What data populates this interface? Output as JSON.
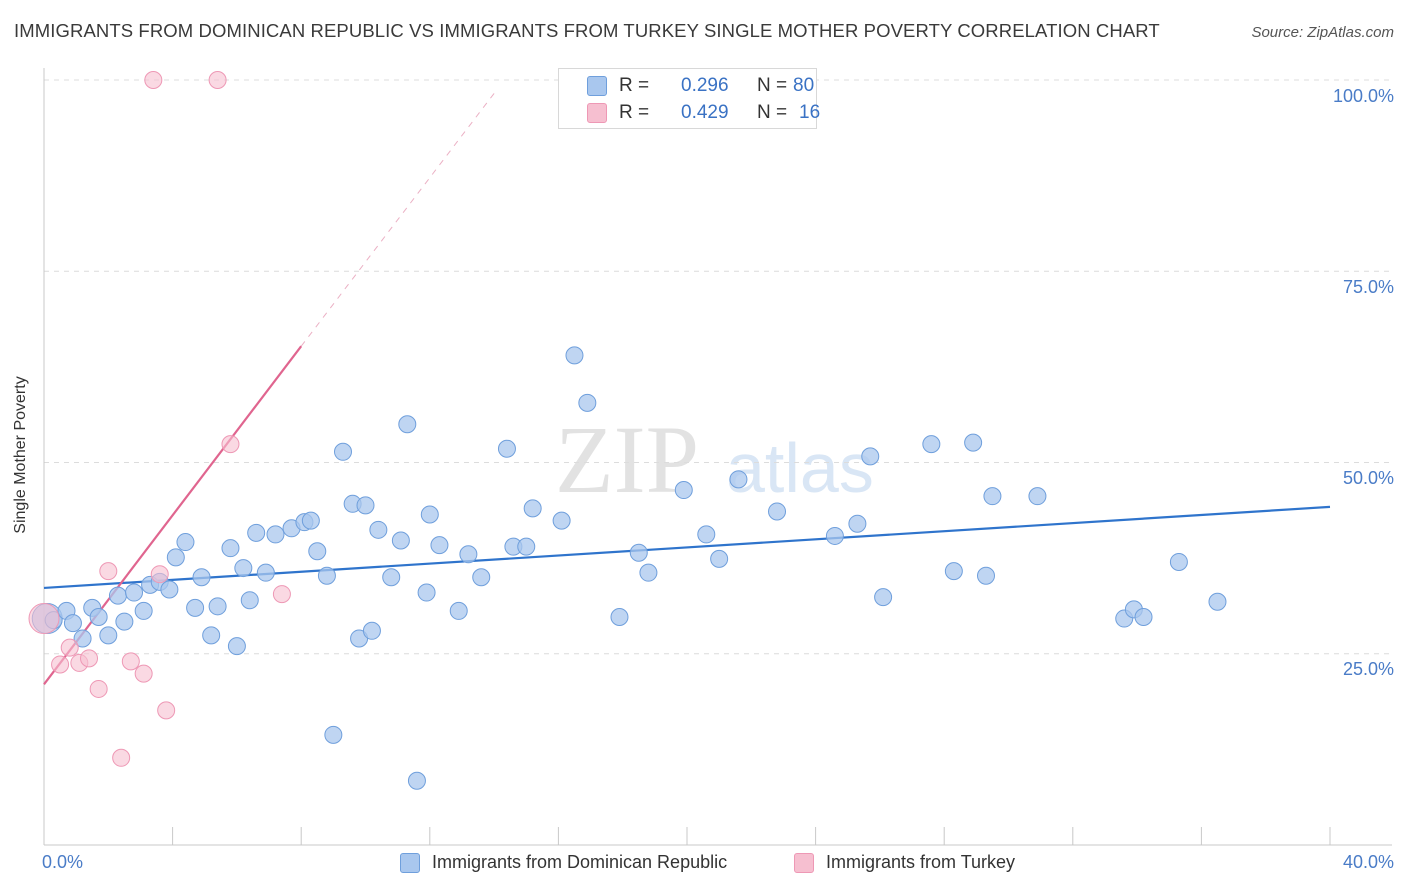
{
  "title": "IMMIGRANTS FROM DOMINICAN REPUBLIC VS IMMIGRANTS FROM TURKEY SINGLE MOTHER POVERTY CORRELATION CHART",
  "source": "Source: ZipAtlas.com",
  "watermark": {
    "zip": "ZIP",
    "atlas": "atlas"
  },
  "legend": {
    "r_label": "R =",
    "n_label": "N =",
    "rows": [
      {
        "r": "0.296",
        "n": "80"
      },
      {
        "r": "0.429",
        "n": "16"
      }
    ]
  },
  "colors": {
    "blue_fill": "#a9c7ee",
    "blue_stroke": "#6f9fdc",
    "blue_line": "#2f74cc",
    "pink_fill": "#f6bfd0",
    "pink_stroke": "#ee98b5",
    "pink_line": "#e0658f",
    "tick_text": "#4a7cc7"
  },
  "chart_data": {
    "type": "scatter",
    "title": "IMMIGRANTS FROM DOMINICAN REPUBLIC VS IMMIGRANTS FROM TURKEY SINGLE MOTHER POVERTY CORRELATION CHART",
    "xlabel": "",
    "ylabel": "Single Mother Poverty",
    "xlim": [
      0,
      40
    ],
    "ylim": [
      0,
      100
    ],
    "x_tick_labels": [
      "0.0%",
      "40.0%"
    ],
    "y_ticks": [
      25,
      50,
      75,
      100
    ],
    "y_tick_labels": [
      "25.0%",
      "50.0%",
      "75.0%",
      "100.0%"
    ],
    "legend_position": "top-center",
    "series": [
      {
        "name": "Immigrants from Dominican Republic",
        "r": 0.296,
        "n": 80,
        "trend": {
          "x": [
            0,
            40
          ],
          "y": [
            33.6,
            44.2
          ]
        },
        "points": [
          [
            0.1,
            29.6
          ],
          [
            0.3,
            29.4
          ],
          [
            0.7,
            30.6
          ],
          [
            0.9,
            29.0
          ],
          [
            1.2,
            27.0
          ],
          [
            1.5,
            31.0
          ],
          [
            1.7,
            29.8
          ],
          [
            2.0,
            27.4
          ],
          [
            2.3,
            32.6
          ],
          [
            2.5,
            29.2
          ],
          [
            2.8,
            33.0
          ],
          [
            3.1,
            30.6
          ],
          [
            3.3,
            34.0
          ],
          [
            3.6,
            34.4
          ],
          [
            3.9,
            33.4
          ],
          [
            4.1,
            37.6
          ],
          [
            4.4,
            39.6
          ],
          [
            4.7,
            31.0
          ],
          [
            4.9,
            35.0
          ],
          [
            5.2,
            27.4
          ],
          [
            5.4,
            31.2
          ],
          [
            5.8,
            38.8
          ],
          [
            6.0,
            26.0
          ],
          [
            6.2,
            36.2
          ],
          [
            6.4,
            32.0
          ],
          [
            6.6,
            40.8
          ],
          [
            6.9,
            35.6
          ],
          [
            7.2,
            40.6
          ],
          [
            7.7,
            41.4
          ],
          [
            8.1,
            42.2
          ],
          [
            8.3,
            42.4
          ],
          [
            8.5,
            38.4
          ],
          [
            8.8,
            35.2
          ],
          [
            9.0,
            14.4
          ],
          [
            9.3,
            51.4
          ],
          [
            9.6,
            44.6
          ],
          [
            9.8,
            27.0
          ],
          [
            10.0,
            44.4
          ],
          [
            10.2,
            28.0
          ],
          [
            10.4,
            41.2
          ],
          [
            10.8,
            35.0
          ],
          [
            11.1,
            39.8
          ],
          [
            11.3,
            55.0
          ],
          [
            11.6,
            8.4
          ],
          [
            11.9,
            33.0
          ],
          [
            12.0,
            43.2
          ],
          [
            12.3,
            39.2
          ],
          [
            12.9,
            30.6
          ],
          [
            13.2,
            38.0
          ],
          [
            13.6,
            35.0
          ],
          [
            14.4,
            51.8
          ],
          [
            14.6,
            39.0
          ],
          [
            15.0,
            39.0
          ],
          [
            15.2,
            44.0
          ],
          [
            16.1,
            42.4
          ],
          [
            16.5,
            64.0
          ],
          [
            16.9,
            57.8
          ],
          [
            17.9,
            29.8
          ],
          [
            18.5,
            38.2
          ],
          [
            18.8,
            35.6
          ],
          [
            19.9,
            46.4
          ],
          [
            20.6,
            40.6
          ],
          [
            21.0,
            37.4
          ],
          [
            21.6,
            47.8
          ],
          [
            22.8,
            43.6
          ],
          [
            24.6,
            40.4
          ],
          [
            25.3,
            42.0
          ],
          [
            25.7,
            50.8
          ],
          [
            26.1,
            32.4
          ],
          [
            27.6,
            52.4
          ],
          [
            28.3,
            35.8
          ],
          [
            28.9,
            52.6
          ],
          [
            29.3,
            35.2
          ],
          [
            29.5,
            45.6
          ],
          [
            30.9,
            45.6
          ],
          [
            33.6,
            29.6
          ],
          [
            33.9,
            30.8
          ],
          [
            34.2,
            29.8
          ],
          [
            35.3,
            37.0
          ],
          [
            36.5,
            31.8
          ]
        ]
      },
      {
        "name": "Immigrants from Turkey",
        "r": 0.429,
        "n": 16,
        "trend": {
          "x": [
            0,
            8.0
          ],
          "y": [
            21.0,
            65.2
          ]
        },
        "trend_dashed": {
          "x": [
            8.0,
            14.1
          ],
          "y": [
            65.2,
            98.8
          ]
        },
        "points": [
          [
            0.0,
            29.6
          ],
          [
            0.5,
            23.6
          ],
          [
            0.8,
            25.8
          ],
          [
            1.1,
            23.8
          ],
          [
            1.4,
            24.4
          ],
          [
            1.7,
            20.4
          ],
          [
            2.0,
            35.8
          ],
          [
            2.4,
            11.4
          ],
          [
            2.7,
            24.0
          ],
          [
            3.1,
            22.4
          ],
          [
            3.6,
            35.4
          ],
          [
            3.8,
            17.6
          ],
          [
            3.4,
            100.0
          ],
          [
            5.4,
            100.0
          ],
          [
            5.8,
            52.4
          ],
          [
            7.4,
            32.8
          ]
        ]
      }
    ]
  }
}
